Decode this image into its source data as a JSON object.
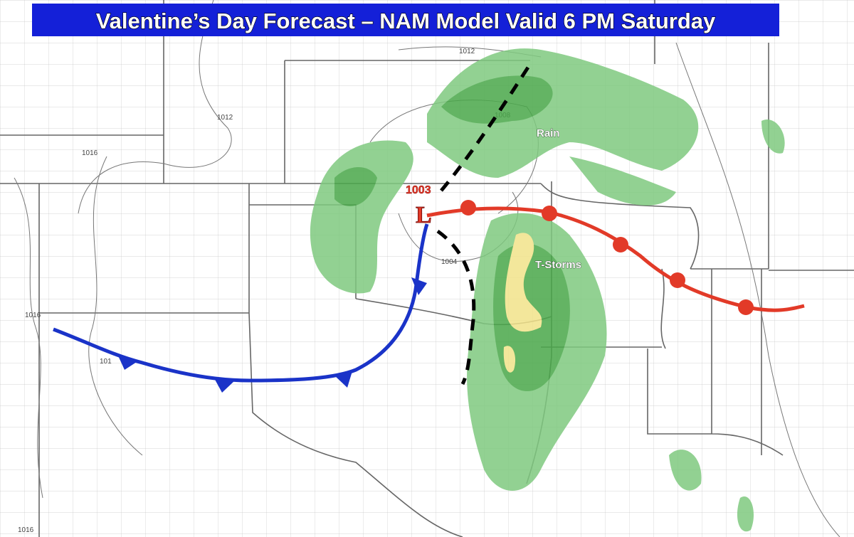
{
  "title": "Valentine’s Day Forecast – NAM Model Valid 6 PM Saturday",
  "low": {
    "pressure": "1003",
    "symbol": "L"
  },
  "labels": {
    "rain": "Rain",
    "tstorms": "T-Storms"
  },
  "isobar_labels": [
    "1012",
    "1012",
    "1016",
    "1008",
    "1004",
    "1016",
    "101",
    "1016"
  ]
}
